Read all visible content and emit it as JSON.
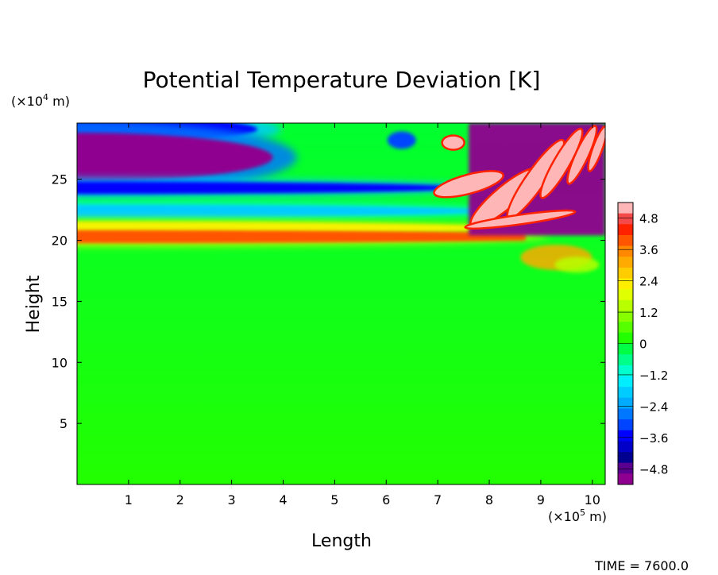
{
  "chart_data": {
    "type": "heatmap",
    "title": "Potential Temperature Deviation [K]",
    "xlabel": "Length",
    "ylabel": "Height",
    "x_unit_prefix": "(×10",
    "x_unit_exp": "5",
    "x_unit_suffix": " m)",
    "y_unit_prefix": "(×10",
    "y_unit_exp": "4",
    "y_unit_suffix": " m)",
    "xlim": [
      0,
      10.25
    ],
    "ylim": [
      0,
      29.6
    ],
    "x_ticks": [
      1,
      2,
      3,
      4,
      5,
      6,
      7,
      8,
      9,
      10
    ],
    "x_tick_labels": [
      "1",
      "2",
      "3",
      "4",
      "5",
      "6",
      "7",
      "8",
      "9",
      "10"
    ],
    "y_ticks": [
      5,
      10,
      15,
      20,
      25
    ],
    "y_tick_labels": [
      "5",
      "10",
      "15",
      "20",
      "25"
    ],
    "colorbar": {
      "range": [
        -5.4,
        5.4
      ],
      "ticks": [
        4.8,
        3.6,
        2.4,
        1.2,
        0,
        -1.2,
        -2.4,
        -3.6,
        -4.8
      ],
      "tick_labels": [
        "4.8",
        "3.6",
        "2.4",
        "1.2",
        "0",
        "−1.2",
        "−2.4",
        "−3.6",
        "−4.8"
      ],
      "colors_top_to_bottom": [
        "#ffb6b6",
        "#f44a4a",
        "#ff2200",
        "#ff5500",
        "#ff8800",
        "#ffaa00",
        "#ffcc00",
        "#ffee00",
        "#e0ff00",
        "#b8ff00",
        "#88ff00",
        "#55ff00",
        "#22ff00",
        "#00ff44",
        "#00ff88",
        "#00ffcc",
        "#00eeff",
        "#00ccff",
        "#00aaff",
        "#0077ff",
        "#0044ff",
        "#0000ff",
        "#0000c8",
        "#000090",
        "#5a0090",
        "#900090"
      ]
    },
    "background_value": 0,
    "bands": [
      {
        "x_start": 0,
        "x_end": 8.7,
        "y_center": 20.3,
        "value": 3.9
      },
      {
        "x_start": 0,
        "x_end": 8.4,
        "y_center": 21.0,
        "value": 2.2
      },
      {
        "x_start": 0,
        "x_end": 8.0,
        "y_center": 22.4,
        "value": -1.8
      },
      {
        "x_start": 0,
        "x_end": 7.6,
        "y_center": 24.3,
        "value": -3.8
      },
      {
        "x_start": 0,
        "x_end": 3.8,
        "y_center": 26.8,
        "value": -5.2
      },
      {
        "x_start": 0,
        "x_end": 3.5,
        "y_center": 29.1,
        "value": -3.6
      }
    ],
    "annotation": "TIME = 7600.0"
  }
}
